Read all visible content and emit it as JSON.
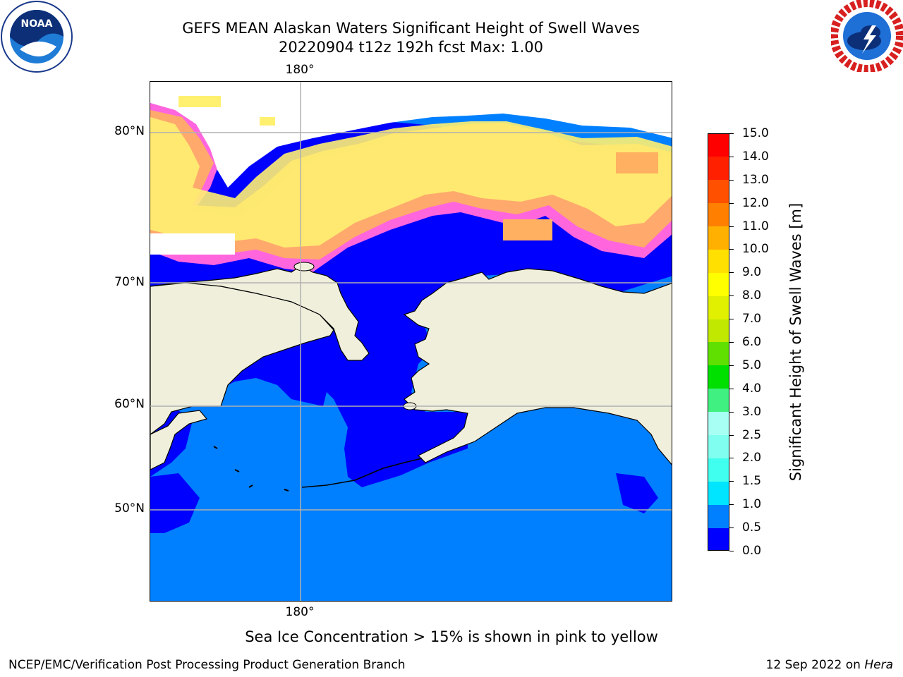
{
  "title_line1": "GEFS MEAN Alaskan Waters Significant Height of Swell Waves",
  "title_line2": "20220904 t12z 192h fcst   Max: 1.00",
  "logos": {
    "left": {
      "icon": "noaa-logo",
      "text": "NOAA"
    },
    "right": {
      "icon": "nws-logo"
    }
  },
  "map": {
    "lon_tick_top": "180°",
    "lon_tick_bottom": "180°",
    "lat_ticks": [
      "80°N",
      "70°N",
      "60°N",
      "50°N"
    ],
    "colors": {
      "land": "#efefdc",
      "ocean_0_to_0_5": "#0000ff",
      "ocean_0_5_to_1_0": "#0080ff",
      "sea_ice": [
        "#ff66dd",
        "#ffb060",
        "#fff070"
      ],
      "grid": "#b0b0b0"
    }
  },
  "colorbar": {
    "title": "Significant Height of Swell Waves [m]",
    "labels": [
      "0.0",
      "0.5",
      "1.0",
      "1.5",
      "2.0",
      "2.5",
      "3.0",
      "4.0",
      "5.0",
      "6.0",
      "7.0",
      "8.0",
      "9.0",
      "10.0",
      "11.0",
      "12.0",
      "13.0",
      "14.0",
      "15.0"
    ],
    "colors": [
      "#0000ff",
      "#0080ff",
      "#00e5ff",
      "#40ffee",
      "#80fff0",
      "#a8fff4",
      "#40f080",
      "#00e000",
      "#60e000",
      "#c0e800",
      "#e0f000",
      "#ffff00",
      "#ffe000",
      "#ffb000",
      "#ff8000",
      "#ff5000",
      "#ff2000",
      "#ff0000"
    ]
  },
  "ice_note": "Sea Ice Concentration > 15% is shown in pink to yellow",
  "footer_left": "NCEP/EMC/Verification Post Processing Product Generation Branch",
  "footer_date": "12 Sep 2022 on",
  "footer_machine": "Hera"
}
